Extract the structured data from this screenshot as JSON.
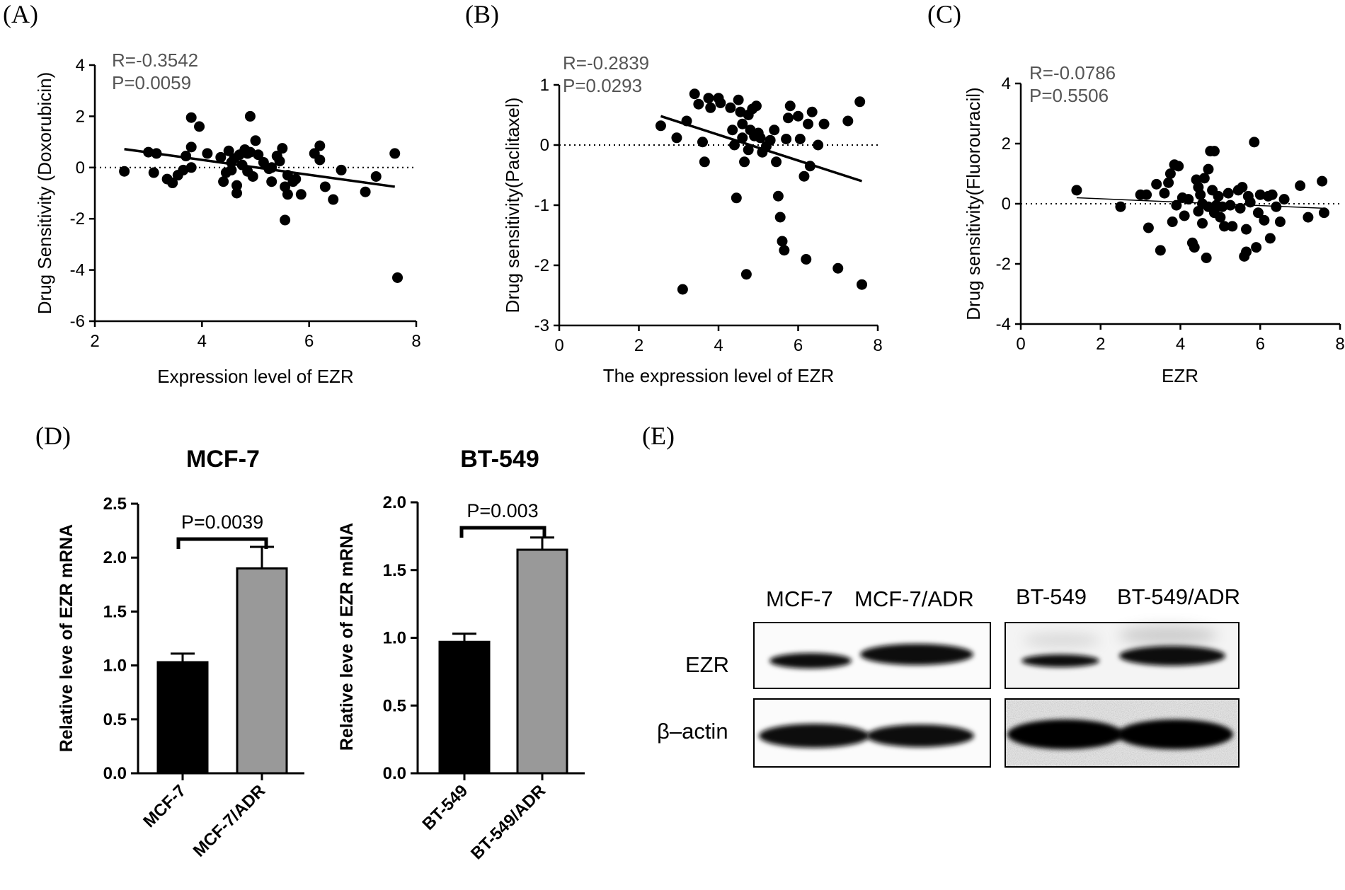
{
  "panel_labels": [
    "(A)",
    "(B)",
    "(C)",
    "(D)",
    "(E)"
  ],
  "chart_data": [
    {
      "id": "A",
      "type": "scatter",
      "xlabel": "Expression level of EZR",
      "ylabel": "Drug Sensitivity (Doxorubicin)",
      "stats": [
        "R=-0.3542",
        "P=0.0059"
      ],
      "xlim": [
        2,
        8
      ],
      "ylim": [
        -6,
        4
      ],
      "xticks": [
        2,
        4,
        6,
        8
      ],
      "yticks": [
        -6,
        -4,
        -2,
        0,
        2,
        4
      ],
      "fit": [
        [
          2.55,
          0.72
        ],
        [
          7.6,
          -0.75
        ]
      ],
      "points": [
        [
          2.55,
          -0.15
        ],
        [
          3.0,
          0.6
        ],
        [
          3.1,
          -0.2
        ],
        [
          3.15,
          0.55
        ],
        [
          3.35,
          -0.45
        ],
        [
          3.45,
          -0.6
        ],
        [
          3.55,
          -0.3
        ],
        [
          3.65,
          -0.1
        ],
        [
          3.7,
          0.45
        ],
        [
          3.8,
          0.8
        ],
        [
          3.8,
          1.95
        ],
        [
          3.8,
          0.0
        ],
        [
          3.95,
          1.6
        ],
        [
          4.1,
          0.55
        ],
        [
          4.35,
          0.4
        ],
        [
          4.4,
          -0.55
        ],
        [
          4.45,
          -0.2
        ],
        [
          4.5,
          0.65
        ],
        [
          4.55,
          -0.1
        ],
        [
          4.55,
          0.2
        ],
        [
          4.6,
          0.35
        ],
        [
          4.65,
          -0.7
        ],
        [
          4.65,
          -1.0
        ],
        [
          4.7,
          0.5
        ],
        [
          4.75,
          0.1
        ],
        [
          4.8,
          0.7
        ],
        [
          4.85,
          0.55
        ],
        [
          4.85,
          -0.15
        ],
        [
          4.9,
          2.0
        ],
        [
          4.9,
          0.6
        ],
        [
          4.95,
          -0.35
        ],
        [
          5.0,
          1.05
        ],
        [
          5.05,
          0.5
        ],
        [
          5.15,
          0.2
        ],
        [
          5.25,
          -0.05
        ],
        [
          5.3,
          0.0
        ],
        [
          5.3,
          -0.55
        ],
        [
          5.4,
          0.45
        ],
        [
          5.45,
          0.25
        ],
        [
          5.5,
          0.75
        ],
        [
          5.55,
          -0.75
        ],
        [
          5.6,
          -1.05
        ],
        [
          5.6,
          -0.3
        ],
        [
          5.55,
          -2.05
        ],
        [
          5.7,
          -0.55
        ],
        [
          5.75,
          -0.45
        ],
        [
          5.85,
          -1.05
        ],
        [
          6.1,
          0.55
        ],
        [
          6.2,
          0.85
        ],
        [
          6.2,
          0.3
        ],
        [
          6.3,
          -0.75
        ],
        [
          6.45,
          -1.25
        ],
        [
          6.6,
          -0.1
        ],
        [
          7.05,
          -0.95
        ],
        [
          7.25,
          -0.35
        ],
        [
          7.6,
          0.55
        ],
        [
          7.65,
          -4.3
        ]
      ]
    },
    {
      "id": "B",
      "type": "scatter",
      "xlabel": "The expression level of EZR",
      "ylabel": "Drug sensitivity(Paclitaxel)",
      "stats": [
        "R=-0.2839",
        "P=0.0293"
      ],
      "xlim": [
        0,
        8
      ],
      "ylim": [
        -3,
        1
      ],
      "xticks": [
        0,
        2,
        4,
        6,
        8
      ],
      "yticks": [
        -3,
        -2,
        -1,
        0,
        1
      ],
      "fit": [
        [
          2.55,
          0.48
        ],
        [
          7.6,
          -0.6
        ]
      ],
      "points": [
        [
          2.55,
          0.32
        ],
        [
          2.95,
          0.12
        ],
        [
          3.1,
          -2.4
        ],
        [
          3.2,
          0.4
        ],
        [
          3.4,
          0.85
        ],
        [
          3.5,
          0.68
        ],
        [
          3.6,
          0.05
        ],
        [
          3.65,
          -0.28
        ],
        [
          3.75,
          0.78
        ],
        [
          3.8,
          0.62
        ],
        [
          4.0,
          0.78
        ],
        [
          4.05,
          0.7
        ],
        [
          4.3,
          0.62
        ],
        [
          4.35,
          0.25
        ],
        [
          4.4,
          0.0
        ],
        [
          4.45,
          -0.88
        ],
        [
          4.5,
          0.75
        ],
        [
          4.55,
          0.55
        ],
        [
          4.6,
          0.35
        ],
        [
          4.6,
          0.12
        ],
        [
          4.65,
          -0.28
        ],
        [
          4.7,
          -2.15
        ],
        [
          4.75,
          0.5
        ],
        [
          4.75,
          -0.08
        ],
        [
          4.8,
          0.25
        ],
        [
          4.85,
          0.6
        ],
        [
          4.9,
          0.15
        ],
        [
          4.95,
          0.65
        ],
        [
          5.0,
          0.2
        ],
        [
          5.05,
          0.12
        ],
        [
          5.1,
          -0.12
        ],
        [
          5.2,
          -0.02
        ],
        [
          5.3,
          0.08
        ],
        [
          5.4,
          0.25
        ],
        [
          5.45,
          -0.28
        ],
        [
          5.5,
          -0.85
        ],
        [
          5.55,
          -1.2
        ],
        [
          5.6,
          -1.6
        ],
        [
          5.65,
          -1.75
        ],
        [
          5.7,
          0.1
        ],
        [
          5.75,
          0.45
        ],
        [
          5.8,
          0.65
        ],
        [
          6.0,
          0.48
        ],
        [
          6.05,
          0.1
        ],
        [
          6.15,
          -0.52
        ],
        [
          6.2,
          -1.9
        ],
        [
          6.25,
          0.35
        ],
        [
          6.3,
          -0.35
        ],
        [
          6.35,
          0.55
        ],
        [
          6.5,
          0.0
        ],
        [
          6.65,
          0.35
        ],
        [
          7.0,
          -2.05
        ],
        [
          7.25,
          0.4
        ],
        [
          7.55,
          0.72
        ],
        [
          7.6,
          -2.32
        ]
      ]
    },
    {
      "id": "C",
      "type": "scatter",
      "xlabel": "EZR",
      "ylabel": "Drug sensitivity(Fluorouracil)",
      "stats": [
        "R=-0.0786",
        "P=0.5506"
      ],
      "xlim": [
        0,
        8
      ],
      "ylim": [
        -4,
        4
      ],
      "xticks": [
        0,
        2,
        4,
        6,
        8
      ],
      "yticks": [
        -4,
        -2,
        0,
        2,
        4
      ],
      "fit": [
        [
          1.4,
          0.2
        ],
        [
          7.6,
          -0.15
        ]
      ],
      "points": [
        [
          1.4,
          0.45
        ],
        [
          2.5,
          -0.1
        ],
        [
          3.0,
          0.3
        ],
        [
          3.15,
          0.3
        ],
        [
          3.2,
          -0.8
        ],
        [
          3.4,
          0.65
        ],
        [
          3.5,
          -1.55
        ],
        [
          3.6,
          0.35
        ],
        [
          3.7,
          0.7
        ],
        [
          3.75,
          1.0
        ],
        [
          3.8,
          -0.6
        ],
        [
          3.85,
          1.3
        ],
        [
          3.9,
          -0.05
        ],
        [
          3.95,
          1.25
        ],
        [
          4.05,
          0.2
        ],
        [
          4.1,
          -0.4
        ],
        [
          4.2,
          0.15
        ],
        [
          4.3,
          -1.3
        ],
        [
          4.35,
          -1.45
        ],
        [
          4.4,
          0.8
        ],
        [
          4.45,
          0.55
        ],
        [
          4.45,
          -0.25
        ],
        [
          4.5,
          0.3
        ],
        [
          4.55,
          0.0
        ],
        [
          4.55,
          -0.65
        ],
        [
          4.6,
          0.85
        ],
        [
          4.65,
          -1.8
        ],
        [
          4.7,
          1.15
        ],
        [
          4.7,
          -0.1
        ],
        [
          4.75,
          1.75
        ],
        [
          4.8,
          0.45
        ],
        [
          4.85,
          1.75
        ],
        [
          4.85,
          -0.3
        ],
        [
          4.9,
          -0.05
        ],
        [
          4.95,
          0.25
        ],
        [
          5.0,
          -0.45
        ],
        [
          5.05,
          -0.1
        ],
        [
          5.1,
          -0.75
        ],
        [
          5.2,
          0.35
        ],
        [
          5.25,
          -0.05
        ],
        [
          5.3,
          -0.75
        ],
        [
          5.45,
          0.45
        ],
        [
          5.5,
          -0.15
        ],
        [
          5.55,
          0.55
        ],
        [
          5.6,
          -1.75
        ],
        [
          5.65,
          -0.85
        ],
        [
          5.65,
          -1.6
        ],
        [
          5.7,
          0.25
        ],
        [
          5.75,
          0.05
        ],
        [
          5.85,
          2.05
        ],
        [
          5.9,
          -1.45
        ],
        [
          5.95,
          -0.3
        ],
        [
          6.0,
          0.3
        ],
        [
          6.1,
          -0.55
        ],
        [
          6.2,
          0.25
        ],
        [
          6.25,
          -1.15
        ],
        [
          6.3,
          0.3
        ],
        [
          6.4,
          -0.1
        ],
        [
          6.5,
          -0.6
        ],
        [
          6.6,
          0.15
        ],
        [
          7.0,
          0.6
        ],
        [
          7.2,
          -0.45
        ],
        [
          7.55,
          0.75
        ],
        [
          7.6,
          -0.3
        ]
      ]
    },
    {
      "id": "D1",
      "type": "bar",
      "title": "MCF-7",
      "ylabel": "Relative leve of EZR mRNA",
      "categories": [
        "MCF-7",
        "MCF-7/ADR"
      ],
      "values": [
        1.03,
        1.9
      ],
      "errors": [
        0.08,
        0.2
      ],
      "colors": [
        "#000000",
        "#999999"
      ],
      "ylim": [
        0,
        2.5
      ],
      "yticks": [
        "0.0",
        "0.5",
        "1.0",
        "1.5",
        "2.0",
        "2.5"
      ],
      "pvalue": "P=0.0039"
    },
    {
      "id": "D2",
      "type": "bar",
      "title": "BT-549",
      "ylabel": "Relative leve of EZR mRNA",
      "categories": [
        "BT-549",
        "BT-549/ADR"
      ],
      "values": [
        0.97,
        1.65
      ],
      "errors": [
        0.06,
        0.09
      ],
      "colors": [
        "#000000",
        "#999999"
      ],
      "ylim": [
        0,
        2.0
      ],
      "yticks": [
        "0.0",
        "0.5",
        "1.0",
        "1.5",
        "2.0"
      ],
      "pvalue": "P=0.003"
    }
  ],
  "western_blot": {
    "lanes_left": [
      "MCF-7",
      "MCF-7/ADR"
    ],
    "lanes_right": [
      "BT-549",
      "BT-549/ADR"
    ],
    "rows": [
      "EZR",
      "β–actin"
    ]
  }
}
